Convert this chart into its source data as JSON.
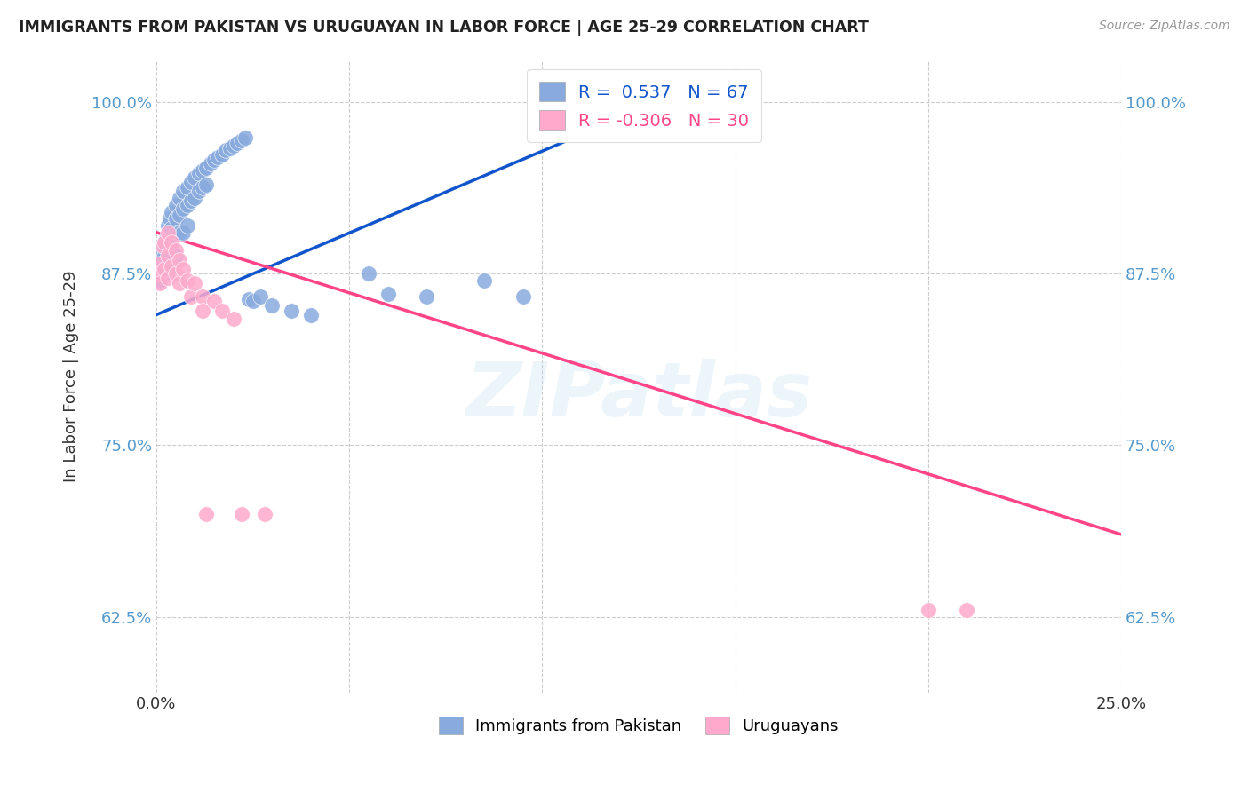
{
  "title": "IMMIGRANTS FROM PAKISTAN VS URUGUAYAN IN LABOR FORCE | AGE 25-29 CORRELATION CHART",
  "source": "Source: ZipAtlas.com",
  "ylabel": "In Labor Force | Age 25-29",
  "xlim": [
    0.0,
    0.25
  ],
  "ylim": [
    0.57,
    1.03
  ],
  "yticks": [
    0.625,
    0.75,
    0.875,
    1.0
  ],
  "ytick_labels": [
    "62.5%",
    "75.0%",
    "87.5%",
    "100.0%"
  ],
  "xticks": [
    0.0,
    0.05,
    0.1,
    0.15,
    0.2,
    0.25
  ],
  "xtick_labels": [
    "0.0%",
    "",
    "",
    "",
    "",
    "25.0%"
  ],
  "blue_R": 0.537,
  "blue_N": 67,
  "pink_R": -0.306,
  "pink_N": 30,
  "blue_color": "#88AADD",
  "pink_color": "#FFAACC",
  "blue_line_color": "#1155CC",
  "pink_line_color": "#FF4488",
  "watermark": "ZIPatlas",
  "blue_line_x0": 0.0,
  "blue_line_y0": 0.845,
  "blue_line_x1": 0.13,
  "blue_line_y1": 1.0,
  "pink_line_x0": 0.0,
  "pink_line_y0": 0.905,
  "pink_line_x1": 0.25,
  "pink_line_y1": 0.685,
  "blue_scatter_x": [
    0.0005,
    0.001,
    0.001,
    0.001,
    0.0012,
    0.0015,
    0.0015,
    0.002,
    0.002,
    0.002,
    0.0025,
    0.003,
    0.003,
    0.003,
    0.003,
    0.0035,
    0.004,
    0.004,
    0.004,
    0.004,
    0.005,
    0.005,
    0.005,
    0.005,
    0.006,
    0.006,
    0.006,
    0.007,
    0.007,
    0.007,
    0.008,
    0.008,
    0.008,
    0.009,
    0.009,
    0.01,
    0.01,
    0.011,
    0.011,
    0.012,
    0.012,
    0.013,
    0.013,
    0.014,
    0.015,
    0.016,
    0.017,
    0.018,
    0.019,
    0.02,
    0.021,
    0.022,
    0.023,
    0.024,
    0.025,
    0.027,
    0.03,
    0.035,
    0.04,
    0.055,
    0.06,
    0.07,
    0.085,
    0.095,
    0.11,
    0.12,
    0.145
  ],
  "blue_scatter_y": [
    0.878,
    0.882,
    0.875,
    0.87,
    0.885,
    0.892,
    0.88,
    0.895,
    0.888,
    0.875,
    0.9,
    0.91,
    0.9,
    0.892,
    0.88,
    0.915,
    0.92,
    0.908,
    0.895,
    0.88,
    0.925,
    0.915,
    0.905,
    0.888,
    0.93,
    0.918,
    0.905,
    0.935,
    0.922,
    0.905,
    0.938,
    0.925,
    0.91,
    0.942,
    0.928,
    0.945,
    0.93,
    0.948,
    0.935,
    0.95,
    0.938,
    0.952,
    0.94,
    0.955,
    0.958,
    0.96,
    0.962,
    0.965,
    0.966,
    0.968,
    0.97,
    0.972,
    0.974,
    0.856,
    0.855,
    0.858,
    0.852,
    0.848,
    0.845,
    0.875,
    0.86,
    0.858,
    0.87,
    0.858,
    0.99,
    1.0,
    1.0
  ],
  "pink_scatter_x": [
    0.0005,
    0.001,
    0.001,
    0.001,
    0.0015,
    0.002,
    0.002,
    0.003,
    0.003,
    0.003,
    0.004,
    0.004,
    0.005,
    0.005,
    0.006,
    0.006,
    0.007,
    0.008,
    0.009,
    0.01,
    0.012,
    0.012,
    0.013,
    0.015,
    0.017,
    0.02,
    0.022,
    0.028,
    0.2,
    0.21
  ],
  "pink_scatter_y": [
    0.878,
    0.882,
    0.875,
    0.868,
    0.895,
    0.898,
    0.878,
    0.905,
    0.888,
    0.872,
    0.898,
    0.88,
    0.892,
    0.875,
    0.885,
    0.868,
    0.878,
    0.87,
    0.858,
    0.868,
    0.858,
    0.848,
    0.7,
    0.855,
    0.848,
    0.842,
    0.7,
    0.7,
    0.63,
    0.63
  ]
}
